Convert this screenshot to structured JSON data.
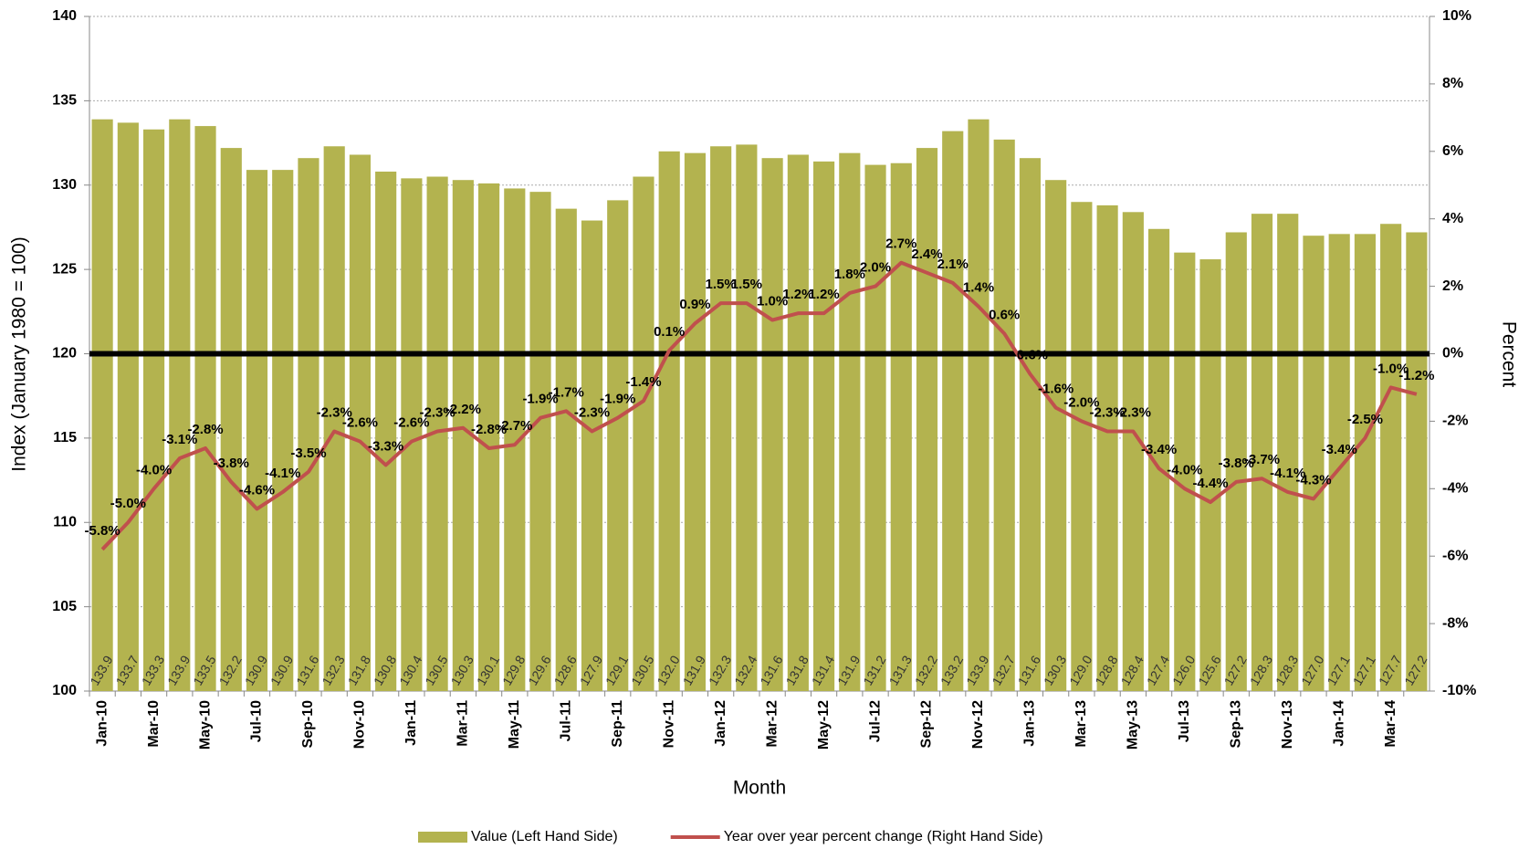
{
  "chart_data": {
    "type": "bar",
    "xlabel": "Month",
    "ylabel": "Index  (January 1980 = 100)",
    "y2label": "Percent",
    "categories": [
      "Jan-10",
      null,
      "Mar-10",
      null,
      "May-10",
      null,
      "Jul-10",
      null,
      "Sep-10",
      null,
      "Nov-10",
      null,
      "Jan-11",
      null,
      "Mar-11",
      null,
      "May-11",
      null,
      "Jul-11",
      null,
      "Sep-11",
      null,
      "Nov-11",
      null,
      "Jan-12",
      null,
      "Mar-12",
      null,
      "May-12",
      null,
      "Jul-12",
      null,
      "Sep-12",
      null,
      "Nov-12",
      null,
      "Jan-13",
      null,
      "Mar-13",
      null,
      "May-13",
      null,
      "Jul-13",
      null,
      "Sep-13",
      null,
      "Nov-13",
      null,
      "Jan-14",
      null,
      "Mar-14",
      null
    ],
    "series": [
      {
        "name": "Value (Left Hand Side)",
        "type": "bar",
        "color": "#b3b34f",
        "values": [
          133.9,
          133.7,
          133.3,
          133.9,
          133.5,
          132.2,
          130.9,
          130.9,
          131.6,
          132.3,
          131.8,
          130.8,
          130.4,
          130.5,
          130.3,
          130.1,
          129.8,
          129.6,
          128.6,
          127.9,
          129.1,
          130.5,
          132.0,
          131.9,
          132.3,
          132.4,
          131.6,
          131.8,
          131.4,
          131.9,
          131.2,
          131.3,
          132.2,
          133.2,
          133.9,
          132.7,
          131.6,
          130.3,
          129.0,
          128.8,
          128.4,
          127.4,
          126.0,
          125.6,
          127.2,
          128.3,
          128.3,
          127.0,
          127.1,
          127.1,
          127.7,
          127.2
        ],
        "value_labels": [
          "133.9",
          "133.7",
          "133.3",
          "133.9",
          "133.5",
          "132.2",
          "130.9",
          "130.9",
          "131.6",
          "132.3",
          "131.8",
          "130.8",
          "130.4",
          "130.5",
          "130.3",
          "130.1",
          "129.8",
          "129.6",
          "128.6",
          "127.9",
          "129.1",
          "130.5",
          "132.0",
          "131.9",
          "132.3",
          "132.4",
          "131.6",
          "131.8",
          "131.4",
          "131.9",
          "131.2",
          "131.3",
          "132.2",
          "133.2",
          "133.9",
          "132.7",
          "131.6",
          "130.3",
          "129.0",
          "128.8",
          "128.4",
          "127.4",
          "126.0",
          "125.6",
          "127.2",
          "128.3",
          "128.3",
          "127.0",
          "127.1",
          "127.1",
          "127.7",
          "127.2"
        ]
      },
      {
        "name": "Year over year percent change (Right Hand Side)",
        "type": "line",
        "axis": "y2",
        "color": "#c0504d",
        "values": [
          -5.8,
          -5.0,
          -4.0,
          -3.1,
          -2.8,
          -3.8,
          -4.6,
          -4.1,
          -3.5,
          -2.3,
          -2.6,
          -3.3,
          -2.6,
          -2.3,
          -2.2,
          -2.8,
          -2.7,
          -1.9,
          -1.7,
          -2.3,
          -1.9,
          -1.4,
          0.1,
          0.9,
          1.5,
          1.5,
          1.0,
          1.2,
          1.2,
          1.8,
          2.0,
          2.7,
          2.4,
          2.1,
          1.4,
          0.6,
          -0.6,
          -1.6,
          -2.0,
          -2.3,
          -2.3,
          -3.4,
          -4.0,
          -4.4,
          -3.8,
          -3.7,
          -4.1,
          -4.3,
          -3.4,
          -2.5,
          -1.0,
          -1.2
        ],
        "value_labels": [
          "-5.8%",
          "-5.0%",
          "-4.0%",
          "-3.1%",
          "-2.8%",
          "-3.8%",
          "-4.6%",
          "-4.1%",
          "-3.5%",
          "-2.3%",
          "-2.6%",
          "-3.3%",
          "-2.6%",
          "-2.3%",
          "-2.2%",
          "-2.8%",
          "-2.7%",
          "-1.9%",
          "-1.7%",
          "-2.3%",
          "-1.9%",
          "-1.4%",
          "0.1%",
          "0.9%",
          "1.5%",
          "1.5%",
          "1.0%",
          "1.2%",
          "1.2%",
          "1.8%",
          "2.0%",
          "2.7%",
          "2.4%",
          "2.1%",
          "1.4%",
          "0.6%",
          "-0.6%",
          "-1.6%",
          "-2.0%",
          "-2.3%",
          "-2.3%",
          "-3.4%",
          "-4.0%",
          "-4.4%",
          "-3.8%",
          "-3.7%",
          "-4.1%",
          "-4.3%",
          "-3.4%",
          "-2.5%",
          "-1.0%",
          "-1.2%"
        ]
      }
    ],
    "ylim": [
      100,
      140
    ],
    "yticks": [
      100,
      105,
      110,
      115,
      120,
      125,
      130,
      135,
      140
    ],
    "y2lim": [
      -10,
      10
    ],
    "y2ticks": [
      {
        "value": -10,
        "label": "-10%"
      },
      {
        "value": -8,
        "label": "-8%"
      },
      {
        "value": -6,
        "label": "-6%"
      },
      {
        "value": -4,
        "label": "-4%"
      },
      {
        "value": -2,
        "label": "-2%"
      },
      {
        "value": 0,
        "label": "0%"
      },
      {
        "value": 2,
        "label": "2%"
      },
      {
        "value": 4,
        "label": "4%"
      },
      {
        "value": 6,
        "label": "6%"
      },
      {
        "value": 8,
        "label": "8%"
      },
      {
        "value": 10,
        "label": "10%"
      }
    ],
    "grid": true,
    "legend": "bottom"
  }
}
